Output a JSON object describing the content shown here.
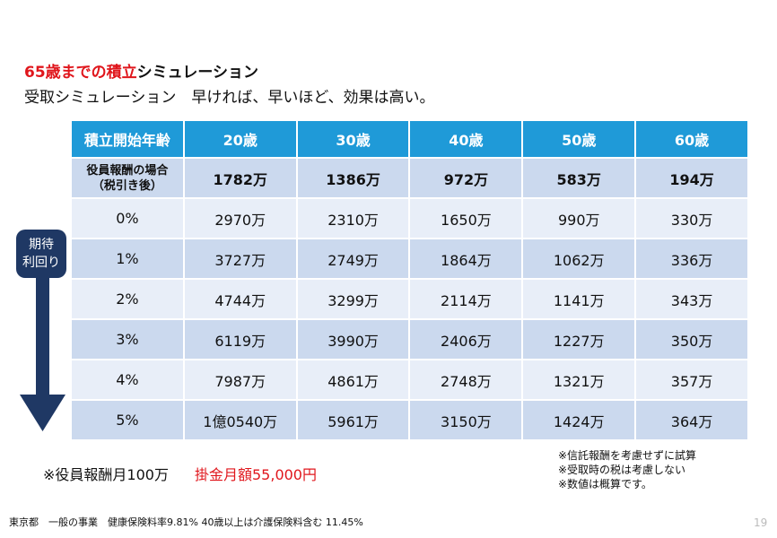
{
  "title": {
    "highlight": "65歳までの積立",
    "rest": "シミュレーション"
  },
  "subtitle": "受取シミュレーション　早ければ、早いほど、効果は高い。",
  "table": {
    "header": [
      "積立開始年齢",
      "20歳",
      "30歳",
      "40歳",
      "50歳",
      "60歳"
    ],
    "rows": [
      [
        [
          "役員報酬の場合",
          "（税引き後）"
        ],
        "1782万",
        "1386万",
        "972万",
        "583万",
        "194万"
      ],
      [
        "0%",
        "2970万",
        "2310万",
        "1650万",
        "990万",
        "330万"
      ],
      [
        "1%",
        "3727万",
        "2749万",
        "1864万",
        "1062万",
        "336万"
      ],
      [
        "2%",
        "4744万",
        "3299万",
        "2114万",
        "1141万",
        "343万"
      ],
      [
        "3%",
        "6119万",
        "3990万",
        "2406万",
        "1227万",
        "350万"
      ],
      [
        "4%",
        "7987万",
        "4861万",
        "2748万",
        "1321万",
        "357万"
      ],
      [
        "5%",
        "1億0540万",
        "5961万",
        "3150万",
        "1424万",
        "364万"
      ]
    ]
  },
  "side_label": [
    "期待",
    "利回り"
  ],
  "note": {
    "salary": "※役員報酬月100万",
    "contribution": "掛金月額55,000円"
  },
  "remarks": [
    "※信託報酬を考慮せずに試算",
    "※受取時の税は考慮しない",
    "※数値は概算です。"
  ],
  "footer": "東京都　一般の事業　健康保険料率9.81% 40歳以上は介護保険料含む 11.45%",
  "page_number": "19"
}
